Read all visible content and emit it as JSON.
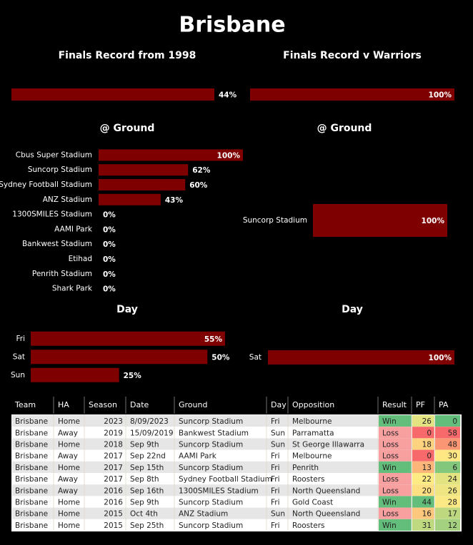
{
  "title": "Brisbane",
  "chart_data": [
    {
      "type": "bar",
      "orientation": "horizontal",
      "title": "Finals Record from 1998",
      "values": [
        44
      ],
      "value_labels": [
        "44%"
      ],
      "color": "#7f0000"
    },
    {
      "type": "bar",
      "orientation": "horizontal",
      "title": "Finals Record v Warriors",
      "values": [
        100
      ],
      "value_labels": [
        "100%"
      ],
      "color": "#7f0000"
    },
    {
      "type": "bar",
      "orientation": "horizontal",
      "title": "@ Ground",
      "categories": [
        "Cbus Super Stadium",
        "Suncorp Stadium",
        "Sydney Football Stadium",
        "ANZ Stadium",
        "1300SMILES Stadium",
        "AAMI Park",
        "Bankwest Stadium",
        "Etihad",
        "Penrith Stadium",
        "Shark Park"
      ],
      "values": [
        100,
        62,
        60,
        43,
        0,
        0,
        0,
        0,
        0,
        0
      ],
      "value_labels": [
        "100%",
        "62%",
        "60%",
        "43%",
        "0%",
        "0%",
        "0%",
        "0%",
        "0%",
        "0%"
      ],
      "color": "#7f0000"
    },
    {
      "type": "bar",
      "orientation": "horizontal",
      "title": "@ Ground",
      "categories": [
        "Suncorp Stadium"
      ],
      "values": [
        100
      ],
      "value_labels": [
        "100%"
      ],
      "color": "#7f0000"
    },
    {
      "type": "bar",
      "orientation": "horizontal",
      "title": "Day",
      "categories": [
        "Fri",
        "Sat",
        "Sun"
      ],
      "values": [
        55,
        50,
        25
      ],
      "value_labels": [
        "55%",
        "50%",
        "25%"
      ],
      "color": "#7f0000"
    },
    {
      "type": "bar",
      "orientation": "horizontal",
      "title": "Day",
      "categories": [
        "Sat"
      ],
      "values": [
        100
      ],
      "value_labels": [
        "100%"
      ],
      "color": "#7f0000"
    }
  ],
  "table": {
    "columns": [
      "Team",
      "HA",
      "Season",
      "Date",
      "Ground",
      "Day",
      "Opposition",
      "Result",
      "PF",
      "PA"
    ],
    "rows": [
      [
        "Brisbane",
        "Home",
        2023,
        "8/09/2023",
        "Suncorp Stadium",
        "Fri",
        "Melbourne",
        "Win",
        26,
        0
      ],
      [
        "Brisbane",
        "Away",
        2019,
        "15/09/2019",
        "Bankwest Stadium",
        "Sun",
        "Parramatta",
        "Loss",
        0,
        58
      ],
      [
        "Brisbane",
        "Home",
        2018,
        "Sep 9th",
        "Suncorp Stadium",
        "Sun",
        "St George Illawarra",
        "Loss",
        18,
        48
      ],
      [
        "Brisbane",
        "Away",
        2017,
        "Sep 22nd",
        "AAMI Park",
        "Fri",
        "Melbourne",
        "Loss",
        0,
        30
      ],
      [
        "Brisbane",
        "Home",
        2017,
        "Sep 15th",
        "Suncorp Stadium",
        "Fri",
        "Penrith",
        "Win",
        13,
        6
      ],
      [
        "Brisbane",
        "Away",
        2017,
        "Sep 8th",
        "Sydney Football Stadium",
        "Fri",
        "Roosters",
        "Loss",
        22,
        24
      ],
      [
        "Brisbane",
        "Away",
        2016,
        "Sep 16th",
        "1300SMILES Stadium",
        "Fri",
        "North Queensland",
        "Loss",
        20,
        26
      ],
      [
        "Brisbane",
        "Home",
        2016,
        "Sep 9th",
        "Suncorp Stadium",
        "Fri",
        "Gold Coast",
        "Win",
        44,
        28
      ],
      [
        "Brisbane",
        "Home",
        2015,
        "Oct 4th",
        "ANZ Stadium",
        "Sun",
        "North Queensland",
        "Loss",
        16,
        17
      ],
      [
        "Brisbane",
        "Home",
        2015,
        "Sep 25th",
        "Suncorp Stadium",
        "Fri",
        "Roosters",
        "Win",
        31,
        12
      ]
    ],
    "result_colors": {
      "Win": "#63be7b",
      "Loss": "#f8a0a0"
    }
  }
}
